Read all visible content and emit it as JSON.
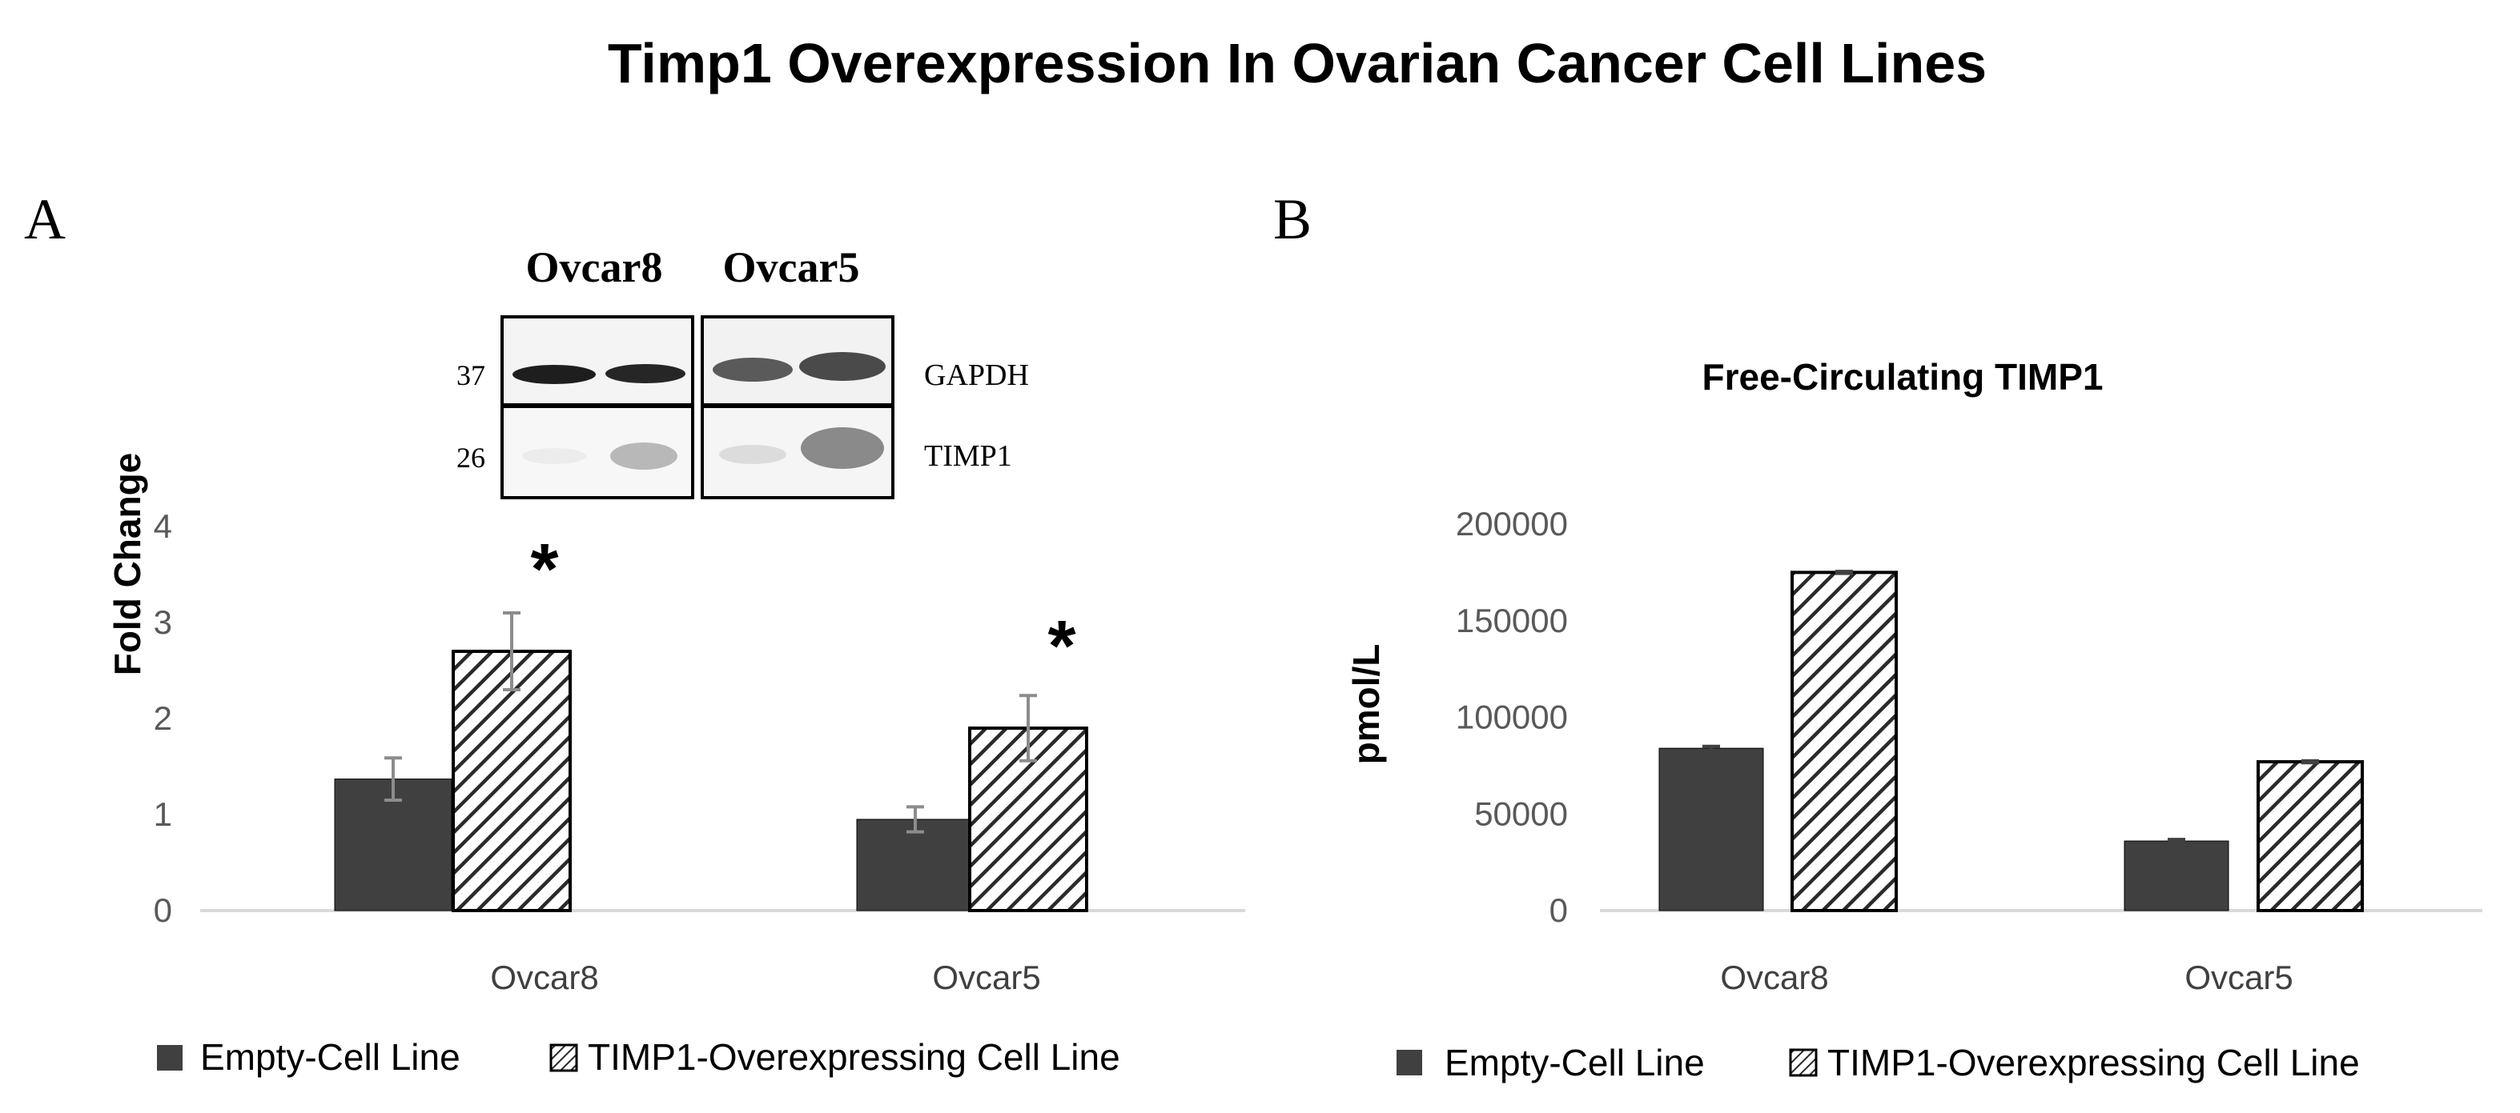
{
  "figure_title": "Timp1 Overexpression In Ovarian Cancer Cell Lines",
  "colors": {
    "dark_bar": "#404040",
    "hatch": "#2a2a2a",
    "axis_line": "#d9d9d9",
    "error_bar": "#8c8c8c",
    "text": "#000000",
    "tick_text": "#595959"
  },
  "panel_a": {
    "label": "A",
    "blot": {
      "lane_headers": [
        "Ovcar8",
        "Ovcar5"
      ],
      "markers": [
        "37",
        "26"
      ],
      "proteins": [
        "GAPDH",
        "TIMP1"
      ]
    },
    "significance": [
      "*",
      "*"
    ],
    "legend": [
      "Empty-Cell Line",
      "TIMP1-Overexpressing Cell Line"
    ]
  },
  "panel_b": {
    "label": "B",
    "legend": [
      "Empty-Cell Line",
      "TIMP1-Overexpressing Cell Line"
    ]
  },
  "chart_data": [
    {
      "type": "bar",
      "title": "",
      "categories": [
        "Ovcar8",
        "Ovcar5"
      ],
      "series": [
        {
          "name": "Empty-Cell Line",
          "values": [
            1.37,
            0.95
          ],
          "errors": [
            0.22,
            0.13
          ],
          "pattern": "solid"
        },
        {
          "name": "TIMP1-Overexpressing Cell Line",
          "values": [
            2.7,
            1.9
          ],
          "errors": [
            0.4,
            0.34
          ],
          "pattern": "hatched"
        }
      ],
      "xlabel": "",
      "ylabel": "Fold Change",
      "ylim": [
        0,
        4
      ],
      "yticks": [
        "0",
        "1",
        "2",
        "3",
        "4"
      ],
      "legend_position": "bottom"
    },
    {
      "type": "bar",
      "title": "Free-Circulating TIMP1",
      "categories": [
        "Ovcar8",
        "Ovcar5"
      ],
      "series": [
        {
          "name": "Empty-Cell Line",
          "values": [
            84000,
            36000
          ],
          "errors": [
            1000,
            800
          ],
          "pattern": "solid"
        },
        {
          "name": "TIMP1-Overexpressing Cell Line",
          "values": [
            175000,
            77000
          ],
          "errors": [
            500,
            500
          ],
          "pattern": "hatched"
        }
      ],
      "xlabel": "",
      "ylabel": "pmol/L",
      "ylim": [
        0,
        200000
      ],
      "yticks": [
        "0",
        "50000",
        "100000",
        "150000",
        "200000"
      ],
      "legend_position": "bottom"
    }
  ]
}
